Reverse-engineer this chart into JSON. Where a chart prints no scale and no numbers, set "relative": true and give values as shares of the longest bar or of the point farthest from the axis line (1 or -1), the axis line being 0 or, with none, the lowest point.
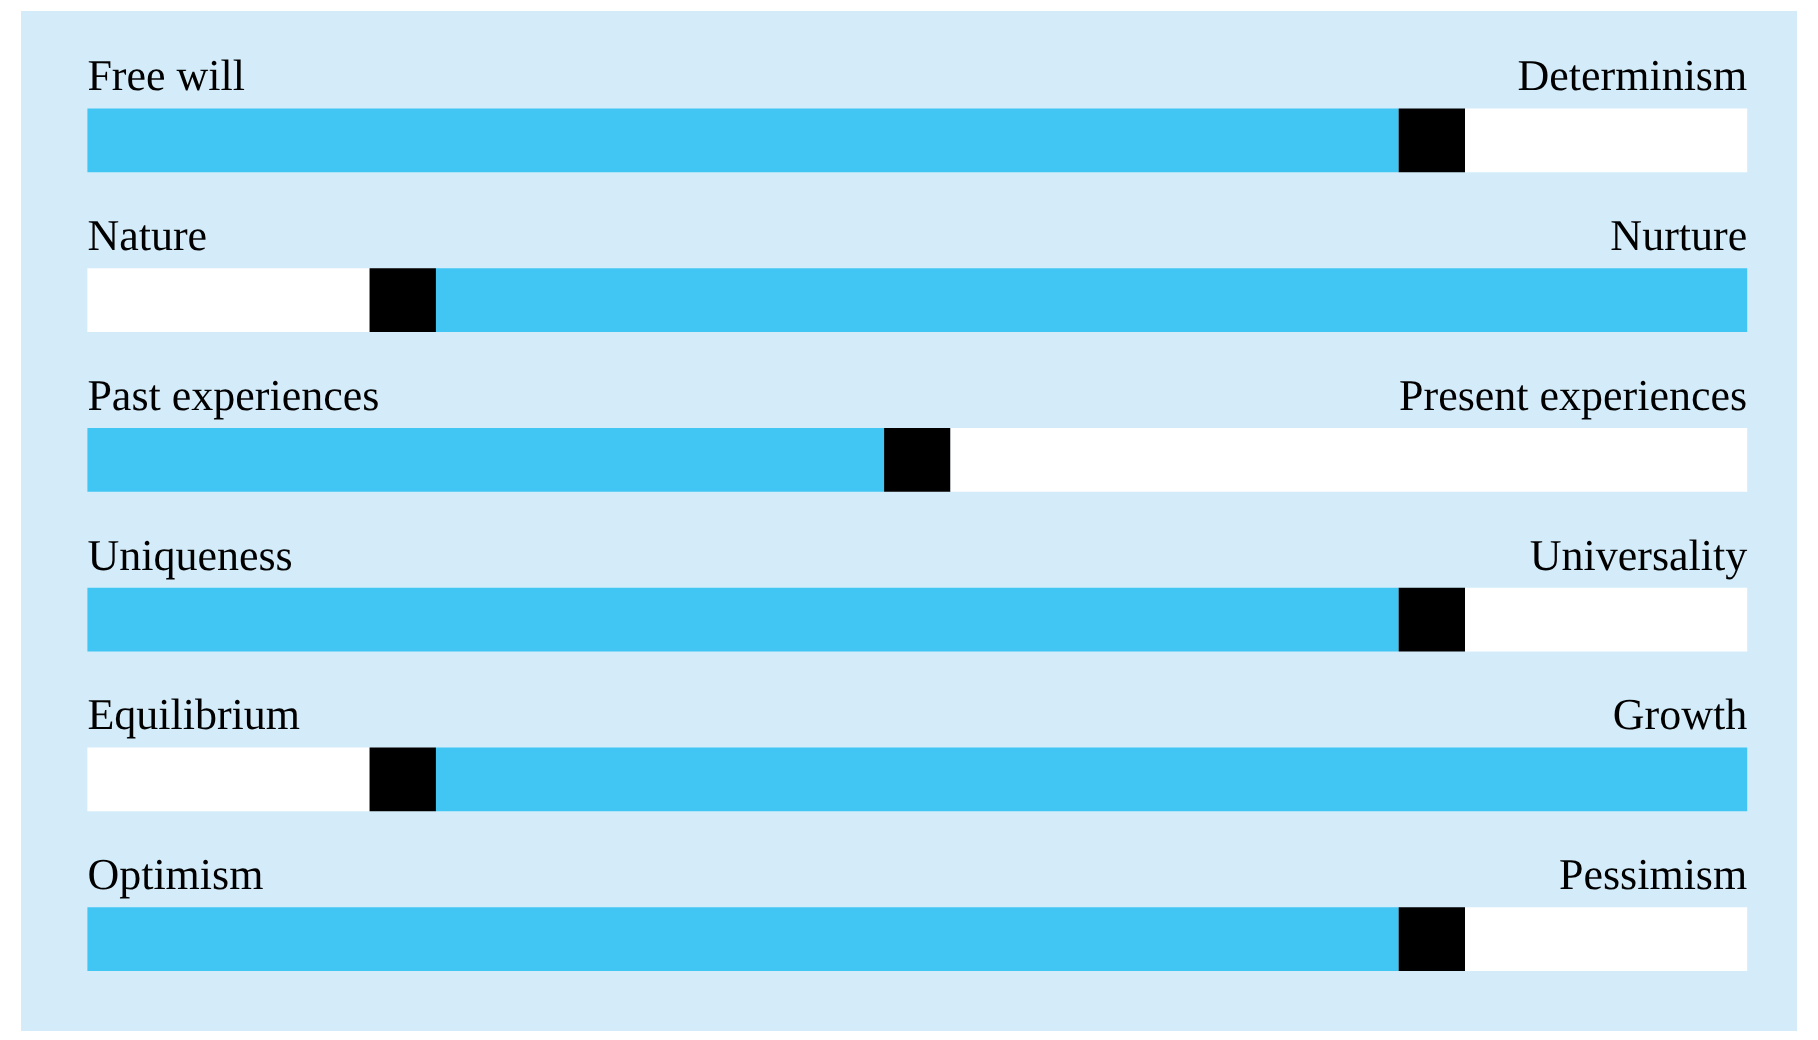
{
  "chart_data": {
    "type": "bar",
    "orientation": "horizontal",
    "stacked": true,
    "relative": true,
    "categories": [
      "Free will",
      "Nature",
      "Past experiences",
      "Uniqueness",
      "Equilibrium",
      "Optimism"
    ],
    "annotations": [
      "Determinism",
      "Nurture",
      "Present experiences",
      "Universality",
      "Growth",
      "Pessimism"
    ],
    "series": [
      {
        "colors": [
          "#41c6f3",
          "#ffffff",
          "#41c6f3",
          "#41c6f3",
          "#ffffff",
          "#41c6f3"
        ],
        "values": [
          0.79,
          0.17,
          0.48,
          0.79,
          0.17,
          0.79
        ]
      },
      {
        "color": "#000000",
        "values": [
          0.04,
          0.04,
          0.04,
          0.04,
          0.04,
          0.04
        ]
      },
      {
        "colors": [
          "#ffffff",
          "#41c6f3",
          "#ffffff",
          "#ffffff",
          "#41c6f3",
          "#ffffff"
        ],
        "values": [
          0.17,
          0.79,
          0.48,
          0.17,
          0.79,
          0.17
        ]
      }
    ]
  }
}
